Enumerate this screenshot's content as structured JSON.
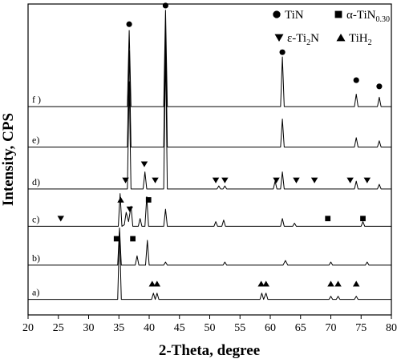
{
  "chart_data": {
    "type": "line",
    "xlabel": "2-Theta, degree",
    "ylabel": "Intensity, CPS",
    "xlim": [
      20,
      80
    ],
    "ylim": [
      0,
      100
    ],
    "xticks": [
      20,
      25,
      30,
      35,
      40,
      45,
      50,
      55,
      60,
      65,
      70,
      75,
      80
    ],
    "series": [
      {
        "name": "a)",
        "color": "#000000",
        "x": [
          20,
          34.8,
          35.1,
          35.4,
          40.4,
          40.7,
          41.0,
          41.3,
          41.6,
          58.3,
          58.6,
          58.9,
          59.3,
          59.6,
          69.7,
          70.0,
          70.3,
          70.9,
          71.2,
          71.5,
          73.9,
          74.2,
          74.5,
          80
        ],
        "values": [
          5,
          5,
          27,
          5,
          5,
          7,
          5,
          7,
          5,
          5,
          7,
          5,
          7,
          5,
          5,
          6,
          5,
          5,
          6,
          5,
          5,
          6,
          5,
          5
        ]
      },
      {
        "name": "b)",
        "color": "#000000",
        "x": [
          20,
          34.8,
          35.1,
          35.4,
          37.7,
          38.0,
          38.3,
          39.4,
          39.7,
          40.0,
          42.4,
          42.7,
          43.0,
          52.2,
          52.5,
          52.8,
          62.1,
          62.5,
          62.9,
          69.7,
          70.0,
          70.3,
          75.7,
          76.0,
          76.3,
          80
        ],
        "values": [
          16,
          16,
          28,
          16,
          16,
          19,
          16,
          16,
          24,
          16,
          16,
          17,
          16,
          16,
          17,
          16,
          16,
          17.5,
          16,
          16,
          17,
          16,
          16,
          17,
          16,
          16
        ]
      },
      {
        "name": "c)",
        "color": "#000000",
        "x": [
          20,
          34.9,
          35.2,
          35.5,
          35.9,
          36.2,
          36.6,
          37.0,
          37.3,
          38.2,
          38.5,
          38.8,
          39.3,
          39.6,
          39.9,
          42.4,
          42.7,
          43.0,
          50.7,
          51.0,
          51.3,
          52.0,
          52.3,
          52.6,
          61.7,
          62.0,
          62.3,
          63.7,
          64.0,
          64.3,
          75.0,
          75.3,
          75.6,
          80
        ],
        "values": [
          28.5,
          28.5,
          39,
          28.5,
          29,
          33,
          30,
          35,
          28.5,
          28.5,
          31,
          28.5,
          28.5,
          38,
          28.5,
          28.5,
          34,
          28.5,
          28.5,
          30,
          28.5,
          28.5,
          30.5,
          28.5,
          28.5,
          31,
          28.5,
          28.5,
          29.5,
          28.5,
          28.5,
          30,
          28.5,
          28.5
        ]
      },
      {
        "name": "d)",
        "color": "#000000",
        "x": [
          20,
          36.4,
          36.7,
          37.0,
          39.0,
          39.3,
          39.6,
          42.4,
          42.7,
          43.0,
          51.2,
          51.5,
          51.8,
          52.2,
          52.5,
          52.8,
          60.5,
          60.8,
          61.1,
          61.7,
          62.0,
          62.3,
          73.9,
          74.2,
          74.5,
          77.7,
          78.0,
          78.3,
          80
        ],
        "values": [
          40.5,
          40.5,
          75,
          40.5,
          40.5,
          46,
          40.5,
          40.5,
          85,
          40.5,
          40.5,
          41.5,
          40.5,
          40.5,
          41.5,
          40.5,
          40.5,
          43,
          40.5,
          40.5,
          46,
          40.5,
          40.5,
          43,
          40.5,
          40.5,
          42,
          40.5,
          40.5
        ]
      },
      {
        "name": "e)",
        "color": "#000000",
        "x": [
          20,
          36.4,
          36.7,
          37.0,
          42.4,
          42.7,
          43.0,
          61.7,
          62.0,
          62.3,
          73.9,
          74.2,
          74.5,
          77.7,
          78.0,
          78.3,
          80
        ],
        "values": [
          54,
          54,
          85,
          54,
          54,
          93,
          54,
          54,
          63,
          54,
          54,
          57,
          54,
          54,
          56,
          54,
          54
        ]
      },
      {
        "name": "f )",
        "color": "#000000",
        "x": [
          20,
          36.4,
          36.7,
          37.0,
          42.4,
          42.7,
          43.0,
          61.7,
          62.0,
          62.3,
          73.9,
          74.2,
          74.5,
          77.7,
          78.0,
          78.3,
          80
        ],
        "values": [
          67,
          67,
          91.5,
          67,
          67,
          98,
          67,
          67,
          83,
          67,
          67,
          71,
          67,
          67,
          70,
          67,
          67
        ]
      }
    ],
    "phases": [
      {
        "shape": "circle",
        "parts": [
          "TiN"
        ],
        "x": [
          36.7,
          42.7,
          62.0,
          74.2,
          78.0
        ],
        "y": [
          93.5,
          99.5,
          84.5,
          75.5,
          73.5
        ]
      },
      {
        "shape": "square",
        "parts": [
          "α-TiN",
          "0.30"
        ],
        "x": [
          34.6,
          37.3,
          39.9,
          69.5,
          75.3
        ],
        "y": [
          24.5,
          24.5,
          37,
          31,
          31
        ]
      },
      {
        "shape": "triangle-down",
        "parts": [
          "ε-Ti",
          "2",
          "N"
        ],
        "x": [
          25.4,
          36.8,
          36.1,
          39.2,
          41.0,
          51.0,
          52.5,
          61.0,
          64.3,
          67.3,
          73.2,
          76.0
        ],
        "y": [
          31,
          34,
          43.3,
          48.5,
          43.3,
          43.3,
          43.3,
          43.3,
          43.3,
          43.3,
          43.3,
          43.3
        ]
      },
      {
        "shape": "triangle-up",
        "parts": [
          "TiH",
          "2"
        ],
        "x": [
          35.3,
          40.5,
          41.3,
          58.5,
          59.3,
          70.0,
          71.2,
          74.2
        ],
        "y": [
          37,
          10,
          10,
          10,
          10,
          10,
          10,
          10
        ]
      }
    ]
  }
}
